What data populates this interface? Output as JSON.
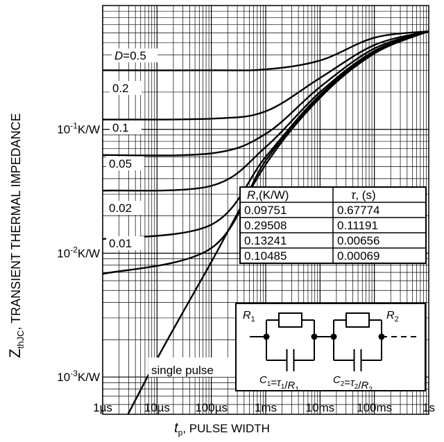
{
  "chart_data": {
    "type": "line",
    "x_scale": "log",
    "y_scale": "log",
    "xlim": [
      "1µs",
      "1s"
    ],
    "ylim": [
      0.0005,
      1
    ],
    "ylabel": {
      "symbol": "Z",
      "subscript": "thJC",
      "text": ",  TRANSIENT THERMAL IMPEDANCE"
    },
    "xlabel": {
      "symbol": "t",
      "subscript": "p",
      "text": ", PULSE WIDTH"
    },
    "x_tick_labels": [
      "1µs",
      "10µs",
      "100µs",
      "1ms",
      "10ms",
      "100ms",
      "1s"
    ],
    "y_tick_labels": [
      "10",
      "-1",
      "K/W",
      "10",
      "-2",
      "K/W",
      "10",
      "-3",
      "K/W"
    ],
    "series": [
      {
        "name": "D=0.5",
        "points": [
          [
            "1e-6",
            0.3
          ],
          [
            "1e-4",
            0.3
          ],
          [
            "1e-3",
            0.305
          ],
          [
            "1e-2",
            0.36
          ],
          [
            "0.1",
            0.55
          ],
          [
            "1",
            0.62
          ]
        ]
      },
      {
        "name": "0.2",
        "points": [
          [
            "1e-6",
            0.12
          ],
          [
            "1e-4",
            0.122
          ],
          [
            "1e-3",
            0.14
          ],
          [
            "1e-2",
            0.26
          ],
          [
            "0.1",
            0.48
          ],
          [
            "1",
            0.62
          ]
        ]
      },
      {
        "name": "0.1",
        "points": [
          [
            "1e-6",
            0.062
          ],
          [
            "1e-4",
            0.064
          ],
          [
            "1e-3",
            0.092
          ],
          [
            "1e-2",
            0.22
          ],
          [
            "0.1",
            0.45
          ],
          [
            "1",
            0.62
          ]
        ]
      },
      {
        "name": "0.05",
        "points": [
          [
            "1e-6",
            0.032
          ],
          [
            "1e-4",
            0.035
          ],
          [
            "1e-3",
            0.072
          ],
          [
            "1e-2",
            0.2
          ],
          [
            "0.1",
            0.43
          ],
          [
            "1",
            0.62
          ]
        ]
      },
      {
        "name": "0.02",
        "points": [
          [
            "1e-6",
            0.013
          ],
          [
            "1e-4",
            0.017
          ],
          [
            "1e-3",
            0.06
          ],
          [
            "1e-2",
            0.19
          ],
          [
            "0.1",
            0.42
          ],
          [
            "1",
            0.62
          ]
        ]
      },
      {
        "name": "0.01",
        "points": [
          [
            "1e-6",
            0.0068
          ],
          [
            "1e-4",
            0.011
          ],
          [
            "1e-3",
            0.056
          ],
          [
            "1e-2",
            0.185
          ],
          [
            "0.1",
            0.42
          ],
          [
            "1",
            0.62
          ]
        ]
      },
      {
        "name": "single pulse",
        "points": [
          [
            "1e-6",
            0.0002
          ],
          [
            "1e-5",
            0.0014
          ],
          [
            "1e-4",
            0.0085
          ],
          [
            "1e-3",
            0.052
          ],
          [
            "1e-2",
            0.18
          ],
          [
            "0.1",
            0.41
          ],
          [
            "1",
            0.62
          ]
        ]
      }
    ],
    "table": {
      "headers": [
        "R,(K/W)",
        "τ, (s)"
      ],
      "rows": [
        [
          "0.09751",
          "0.67774"
        ],
        [
          "0.29508",
          "0.11191"
        ],
        [
          "0.13241",
          "0.00656"
        ],
        [
          "0.10485",
          "0.00069"
        ]
      ]
    },
    "circuit": {
      "r1": "R",
      "r1_sub": "1",
      "r2": "R",
      "r2_sub": "2",
      "c1": "C1=τ1/R1",
      "c2": "C2=τ2/R2"
    }
  }
}
